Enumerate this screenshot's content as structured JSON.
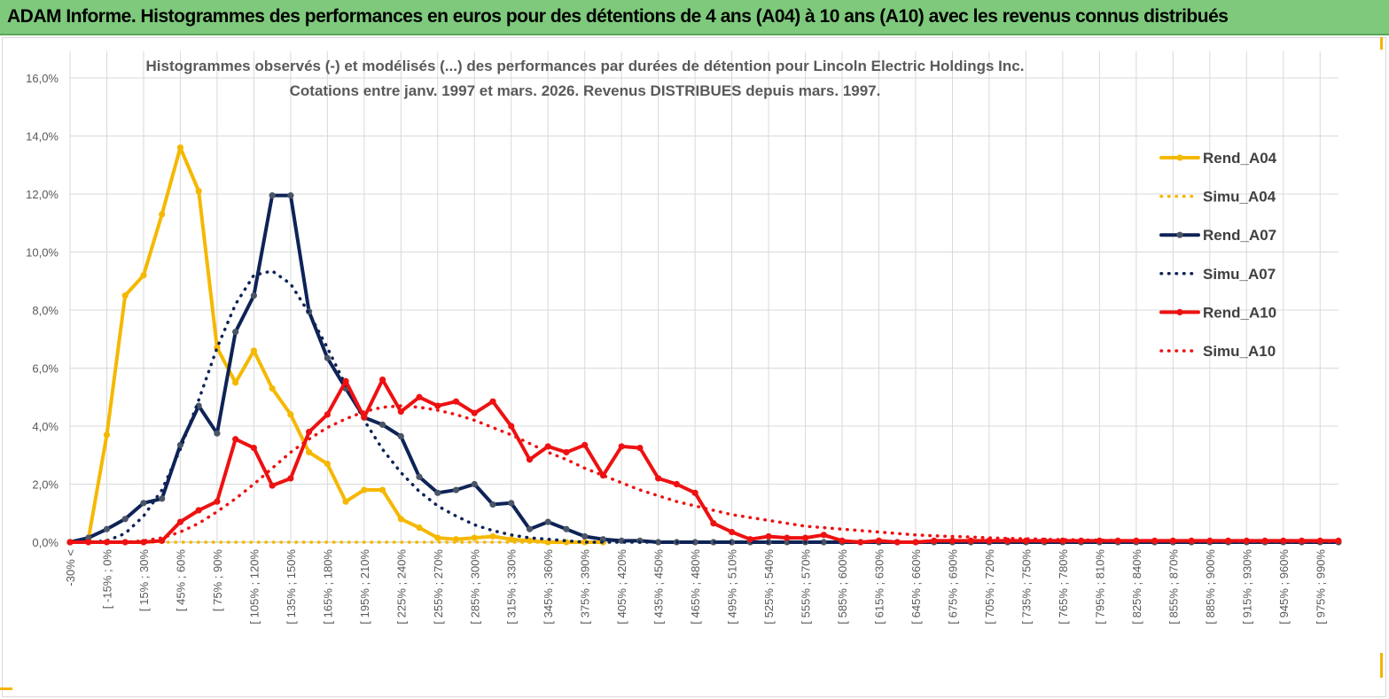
{
  "banner": {
    "title": "ADAM Informe. Histogrammes des performances en euros pour des détentions de 4 ans (A04) à 10 ans (A10) avec les revenus connus distribués"
  },
  "chart_data": {
    "type": "line",
    "title": "Histogrammes observés (-) et modélisés (...) des performances par durées de détention pour Lincoln Electric Holdings Inc.",
    "subtitle": "Cotations entre janv. 1997 et mars. 2026. Revenus DISTRIBUES depuis mars. 1997.",
    "xlabel": "",
    "ylabel": "",
    "ylim": [
      0,
      16
    ],
    "y_ticks": [
      "0,0%",
      "2,0%",
      "4,0%",
      "6,0%",
      "8,0%",
      "10,0%",
      "12,0%",
      "14,0%",
      "16,0%"
    ],
    "grid": true,
    "legend_position": "right",
    "x_tick_labels": [
      "-30% <",
      "[ -15% ; 0%",
      "[ 15% ; 30%",
      "[ 45% ; 60%",
      "[ 75% ; 90%",
      "[ 105% ; 120%",
      "[ 135% ; 150%",
      "[ 165% ; 180%",
      "[ 195% ; 210%",
      "[ 225% ; 240%",
      "[ 255% ; 270%",
      "[ 285% ; 300%",
      "[ 315% ; 330%",
      "[ 345% ; 360%",
      "[ 375% ; 390%",
      "[ 405% ; 420%",
      "[ 435% ; 450%",
      "[ 465% ; 480%",
      "[ 495% ; 510%",
      "[ 525% ; 540%",
      "[ 555% ; 570%",
      "[ 585% ; 600%",
      "[ 615% ; 630%",
      "[ 645% ; 660%",
      "[ 675% ; 690%",
      "[ 705% ; 720%",
      "[ 735% ; 750%",
      "[ 765% ; 780%",
      "[ 795% ; 810%",
      "[ 825% ; 840%",
      "[ 855% ; 870%",
      "[ 885% ; 900%",
      "[ 915% ; 930%",
      "[ 945% ; 960%",
      "[ 975% ; 990%"
    ],
    "series": [
      {
        "name": "Rend_A04",
        "color": "#f5b800",
        "style": "solid",
        "markers": true,
        "values": [
          0,
          0.1,
          3.7,
          8.5,
          9.2,
          11.3,
          13.6,
          12.1,
          6.7,
          5.5,
          6.6,
          5.3,
          4.4,
          3.1,
          2.7,
          1.4,
          1.8,
          1.8,
          0.8,
          0.5,
          0.15,
          0.1,
          0.15,
          0.2,
          0.1,
          0.05,
          0,
          0,
          0,
          0
        ]
      },
      {
        "name": "Simu_A04",
        "color": "#f5b800",
        "style": "dotted",
        "markers": false,
        "values": [
          0,
          0,
          0,
          0,
          0,
          0,
          0,
          0,
          0,
          0,
          0,
          0,
          0,
          0,
          0,
          0,
          0,
          0,
          0,
          0,
          0,
          0,
          0,
          0,
          0,
          0,
          0,
          0,
          0,
          0
        ]
      },
      {
        "name": "Rend_A07",
        "color": "#0e2356",
        "style": "solid",
        "markers": true,
        "values": [
          0,
          0.15,
          0.45,
          0.8,
          1.35,
          1.5,
          3.35,
          4.7,
          3.75,
          7.25,
          8.5,
          11.95,
          11.95,
          7.95,
          6.35,
          5.3,
          4.3,
          4.05,
          3.65,
          2.25,
          1.7,
          1.8,
          2.0,
          1.3,
          1.35,
          0.45,
          0.7,
          0.45,
          0.2,
          0.1,
          0.05,
          0.05,
          0,
          0,
          0,
          0,
          0,
          0,
          0,
          0,
          0,
          0,
          0,
          0,
          0,
          0,
          0,
          0,
          0,
          0,
          0,
          0,
          0,
          0,
          0,
          0,
          0,
          0,
          0,
          0,
          0,
          0,
          0,
          0,
          0,
          0,
          0,
          0,
          0,
          0
        ]
      },
      {
        "name": "Simu_A07",
        "color": "#0e2356",
        "style": "dotted",
        "markers": false,
        "values": [
          0,
          0,
          0.05,
          0.3,
          0.9,
          1.8,
          3.2,
          4.9,
          6.7,
          8.2,
          9.2,
          9.35,
          8.9,
          7.9,
          6.7,
          5.4,
          4.2,
          3.2,
          2.4,
          1.75,
          1.25,
          0.9,
          0.6,
          0.4,
          0.25,
          0.15,
          0.1,
          0.05,
          0,
          0,
          0,
          0,
          0,
          0,
          0,
          0,
          0,
          0,
          0,
          0,
          0,
          0,
          0,
          0,
          0,
          0,
          0,
          0,
          0,
          0,
          0,
          0,
          0,
          0,
          0,
          0,
          0,
          0,
          0,
          0,
          0,
          0,
          0,
          0,
          0,
          0,
          0,
          0,
          0,
          0
        ]
      },
      {
        "name": "Rend_A10",
        "color": "#ee1111",
        "style": "solid",
        "markers": true,
        "values": [
          0,
          0,
          0,
          0,
          0,
          0.05,
          0.7,
          1.1,
          1.4,
          3.55,
          3.25,
          1.95,
          2.2,
          3.8,
          4.4,
          5.55,
          4.3,
          5.6,
          4.5,
          5.0,
          4.7,
          4.85,
          4.45,
          4.85,
          4.0,
          2.85,
          3.3,
          3.1,
          3.35,
          2.3,
          3.3,
          3.25,
          2.2,
          2.0,
          1.7,
          0.65,
          0.35,
          0.1,
          0.2,
          0.15,
          0.15,
          0.25,
          0.05,
          0,
          0.05,
          0,
          0,
          0.05,
          0.05,
          0.05,
          0.05,
          0.05,
          0.05,
          0.05,
          0.05,
          0.05,
          0.05,
          0.05,
          0.05,
          0.05,
          0.05,
          0.05,
          0.05,
          0.05,
          0.05,
          0.05,
          0.05,
          0.05,
          0.05,
          0.05
        ]
      },
      {
        "name": "Simu_A10",
        "color": "#ee1111",
        "style": "dotted",
        "markers": false,
        "values": [
          0,
          0,
          0,
          0,
          0.05,
          0.15,
          0.35,
          0.65,
          1.05,
          1.5,
          2.0,
          2.55,
          3.1,
          3.55,
          3.95,
          4.25,
          4.5,
          4.65,
          4.7,
          4.65,
          4.55,
          4.4,
          4.2,
          3.95,
          3.7,
          3.4,
          3.1,
          2.85,
          2.55,
          2.3,
          2.05,
          1.8,
          1.6,
          1.4,
          1.25,
          1.1,
          0.95,
          0.85,
          0.75,
          0.65,
          0.55,
          0.5,
          0.45,
          0.4,
          0.35,
          0.3,
          0.25,
          0.22,
          0.2,
          0.18,
          0.15,
          0.13,
          0.12,
          0.1,
          0.09,
          0.08,
          0.07,
          0.06,
          0.05,
          0.05,
          0.04,
          0.04,
          0.03,
          0.03,
          0.03,
          0.02,
          0.02,
          0.02,
          0.02,
          0.02
        ]
      }
    ]
  }
}
